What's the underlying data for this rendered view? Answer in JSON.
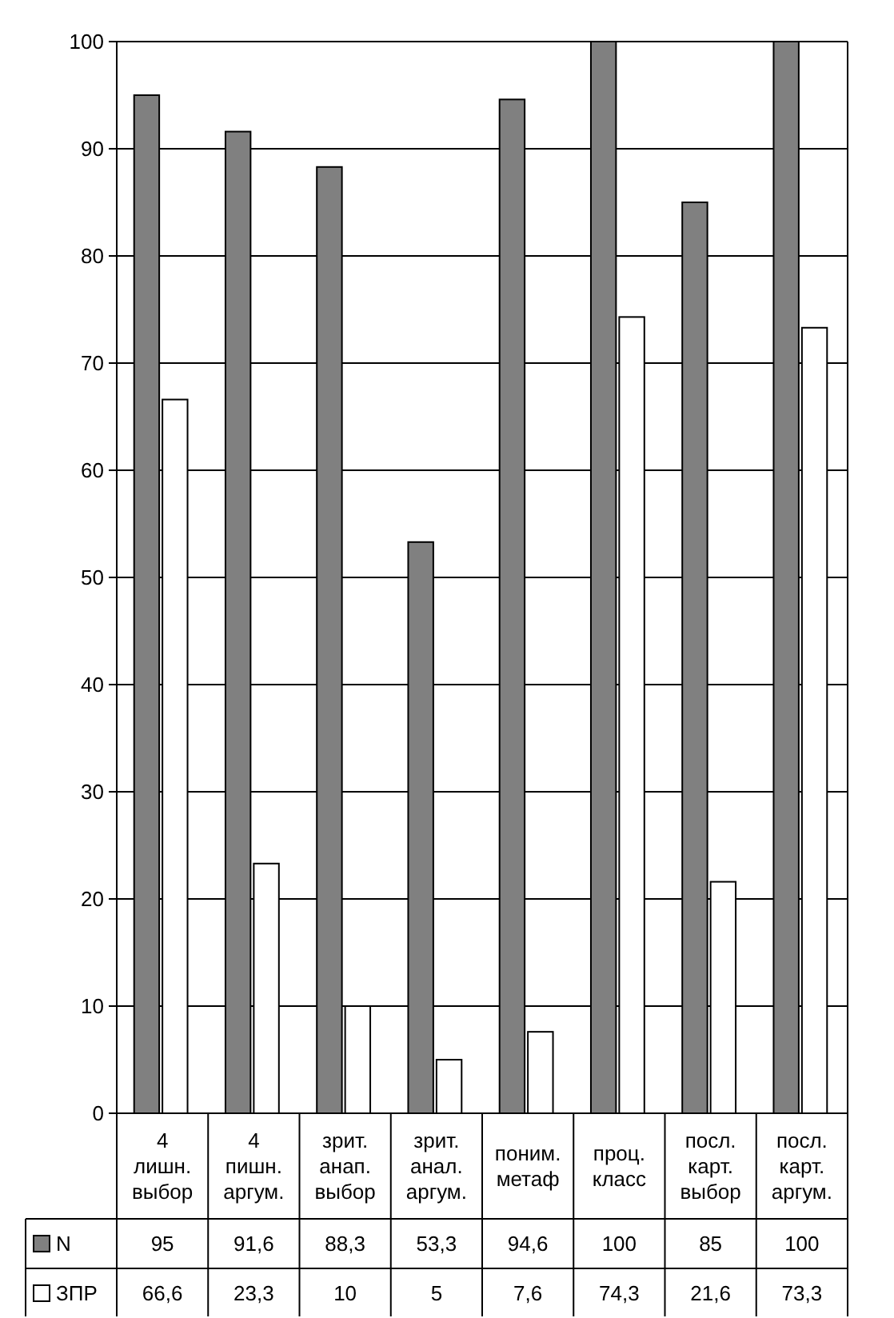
{
  "chart_data": {
    "type": "bar",
    "categories": [
      "4\nлишн.\nвыбор",
      "4\nпишн.\nаргум.",
      "зрит.\nанап.\nвыбор",
      "зрит.\nанал.\nаргум.",
      "поним.\nметаф",
      "проц.\nкласс",
      "посл.\nкарт.\nвыбор",
      "посл.\nкарт.\nаргум."
    ],
    "series": [
      {
        "name": "N",
        "color": "#808080",
        "values": [
          95,
          91.6,
          88.3,
          53.3,
          94.6,
          100,
          85,
          100
        ],
        "value_labels": [
          "95",
          "91,6",
          "88,3",
          "53,3",
          "94,6",
          "100",
          "85",
          "100"
        ]
      },
      {
        "name": "ЗПР",
        "color": "#ffffff",
        "values": [
          66.6,
          23.3,
          10,
          5,
          7.6,
          74.3,
          21.6,
          73.3
        ],
        "value_labels": [
          "66,6",
          "23,3",
          "10",
          "5",
          "7,6",
          "74,3",
          "21,6",
          "73,3"
        ]
      }
    ],
    "ylim": [
      0,
      100
    ],
    "yticks": [
      0,
      10,
      20,
      30,
      40,
      50,
      60,
      70,
      80,
      90,
      100
    ],
    "grid": "y",
    "legend": "bottom"
  }
}
